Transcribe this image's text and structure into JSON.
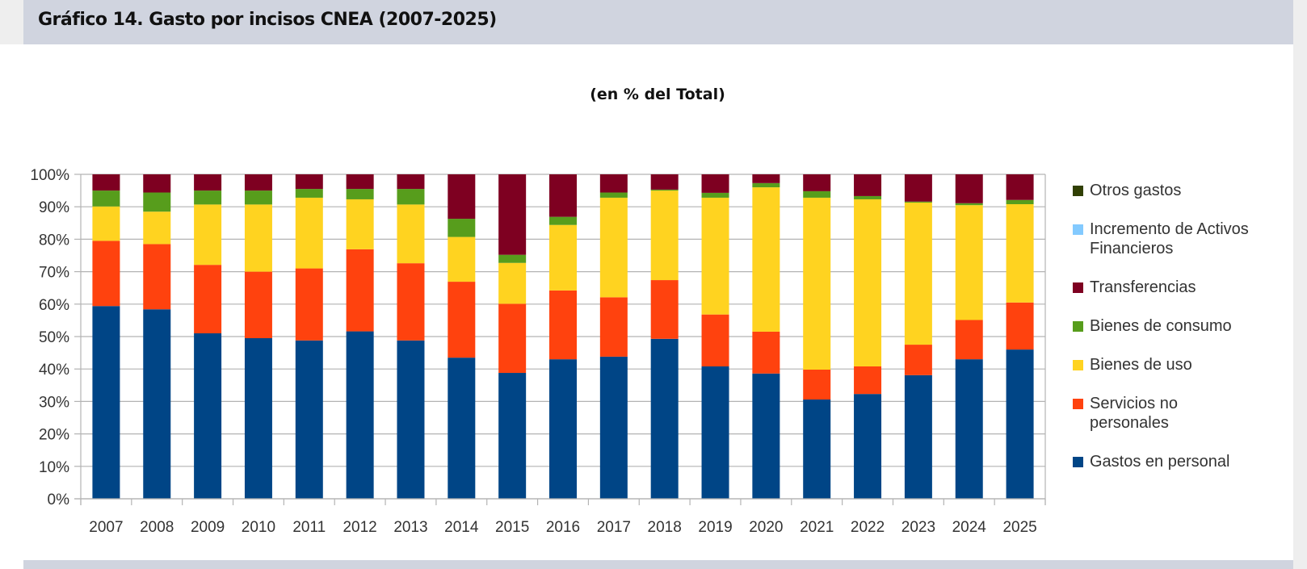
{
  "header": {
    "title": "Gráfico 14. Gasto por incisos CNEA (2007-2025)"
  },
  "chart_data": {
    "type": "bar",
    "stacked": true,
    "title": "Gráfico 14. Gasto por incisos CNEA (2007-2025)",
    "subtitle": "(en % del Total)",
    "xlabel": "",
    "ylabel": "",
    "ylim": [
      0,
      100
    ],
    "yticks": [
      "0%",
      "10%",
      "20%",
      "30%",
      "40%",
      "50%",
      "60%",
      "70%",
      "80%",
      "90%",
      "100%"
    ],
    "grid": true,
    "legend_position": "right",
    "categories": [
      "2007",
      "2008",
      "2009",
      "2010",
      "2011",
      "2012",
      "2013",
      "2014",
      "2015",
      "2016",
      "2017",
      "2018",
      "2019",
      "2020",
      "2021",
      "2022",
      "2023",
      "2024",
      "2025"
    ],
    "series": [
      {
        "name": "Gastos en personal",
        "color": "#004586",
        "values": [
          59.4,
          58.4,
          51.0,
          49.5,
          48.8,
          51.6,
          48.8,
          43.5,
          38.8,
          43.0,
          43.8,
          49.3,
          40.8,
          38.6,
          30.6,
          32.3,
          38.1,
          43.0,
          46.0
        ]
      },
      {
        "name": "Servicios no personales",
        "color": "#ff420e",
        "values": [
          20.1,
          20.1,
          21.1,
          20.5,
          22.2,
          25.3,
          23.8,
          23.4,
          21.3,
          21.2,
          18.3,
          18.1,
          16.0,
          12.9,
          9.2,
          8.5,
          9.4,
          12.1,
          14.5
        ]
      },
      {
        "name": "Bienes de uso",
        "color": "#ffd320",
        "values": [
          10.6,
          10.0,
          18.6,
          20.7,
          21.8,
          15.4,
          18.1,
          13.8,
          12.6,
          20.2,
          30.7,
          27.6,
          36.0,
          44.5,
          53.0,
          51.5,
          43.8,
          35.4,
          30.3
        ]
      },
      {
        "name": "Bienes de consumo",
        "color": "#579d1c",
        "values": [
          4.9,
          5.9,
          4.3,
          4.3,
          2.7,
          3.2,
          4.8,
          5.6,
          2.5,
          2.5,
          1.6,
          0.3,
          1.5,
          1.3,
          2.0,
          1.0,
          0.3,
          0.6,
          1.3
        ]
      },
      {
        "name": "Transferencias",
        "color": "#7e0021",
        "values": [
          5.0,
          5.6,
          5.0,
          5.0,
          4.5,
          4.5,
          4.5,
          13.7,
          24.8,
          13.1,
          5.6,
          4.7,
          5.7,
          2.7,
          5.2,
          6.7,
          8.4,
          8.9,
          7.9
        ]
      },
      {
        "name": "Incremento de Activos Financieros",
        "color": "#83caff",
        "values": [
          0,
          0,
          0,
          0,
          0,
          0,
          0,
          0,
          0,
          0,
          0,
          0,
          0,
          0,
          0,
          0,
          0,
          0,
          0
        ]
      },
      {
        "name": "Otros gastos",
        "color": "#314004",
        "values": [
          0,
          0,
          0,
          0,
          0,
          0,
          0,
          0,
          0,
          0,
          0,
          0,
          0,
          0,
          0,
          0,
          0,
          0,
          0
        ]
      }
    ],
    "legend": [
      {
        "label": "Otros gastos",
        "color": "#314004"
      },
      {
        "label": "Incremento de Activos Financieros",
        "color": "#83caff"
      },
      {
        "label": "Transferencias",
        "color": "#7e0021"
      },
      {
        "label": "Bienes de consumo",
        "color": "#579d1c"
      },
      {
        "label": "Bienes de uso",
        "color": "#ffd320"
      },
      {
        "label": "Servicios no personales",
        "color": "#ff420e"
      },
      {
        "label": "Gastos en personal",
        "color": "#004586"
      }
    ]
  }
}
